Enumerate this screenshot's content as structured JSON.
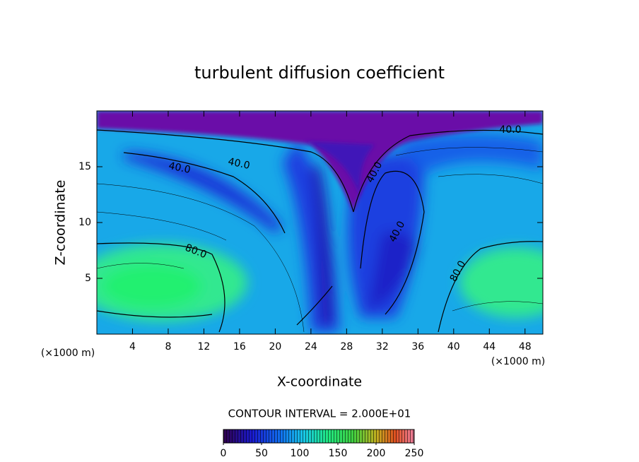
{
  "chart_data": {
    "type": "contour",
    "title": "turbulent diffusion coefficient",
    "xlabel": "X-coordinate",
    "ylabel": "Z-coordinate",
    "x_unit": "(×1000 m)",
    "y_unit": "(×1000 m)",
    "xlim": [
      0,
      50
    ],
    "xticks": [
      4,
      8,
      12,
      16,
      20,
      24,
      28,
      32,
      36,
      40,
      44,
      48
    ],
    "ylim": [
      0,
      20
    ],
    "yticks": [
      5,
      10,
      15
    ],
    "contour_interval": "CONTOUR INTERVAL = 2.000E+01",
    "contour_labels": [
      "40.0",
      "40.0",
      "40.0",
      "40.0",
      "40.0",
      "80.0",
      "80.0"
    ],
    "colorbar": {
      "range": [
        0,
        250
      ],
      "ticks": [
        0,
        50,
        100,
        150,
        200,
        250
      ]
    }
  }
}
